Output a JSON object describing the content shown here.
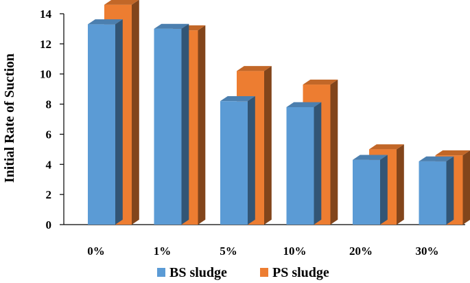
{
  "chart_data": {
    "type": "bar",
    "title": "",
    "xlabel": "",
    "ylabel": "Initial Rate of Suction",
    "ylim": [
      0,
      14
    ],
    "yticks": [
      0,
      2,
      4,
      6,
      8,
      10,
      12,
      14
    ],
    "categories": [
      "0%",
      "1%",
      "5%",
      "10%",
      "20%",
      "30%"
    ],
    "series": [
      {
        "name": "BS sludge",
        "values": [
          13.3,
          13.0,
          8.2,
          7.8,
          4.3,
          4.2
        ],
        "color": "#5B9BD5"
      },
      {
        "name": "PS sludge",
        "values": [
          14.6,
          12.9,
          10.2,
          9.3,
          5.0,
          4.6
        ],
        "color": "#ED7D31"
      }
    ],
    "style": "3d-clustered-column",
    "grid": false,
    "legend_position": "bottom"
  }
}
